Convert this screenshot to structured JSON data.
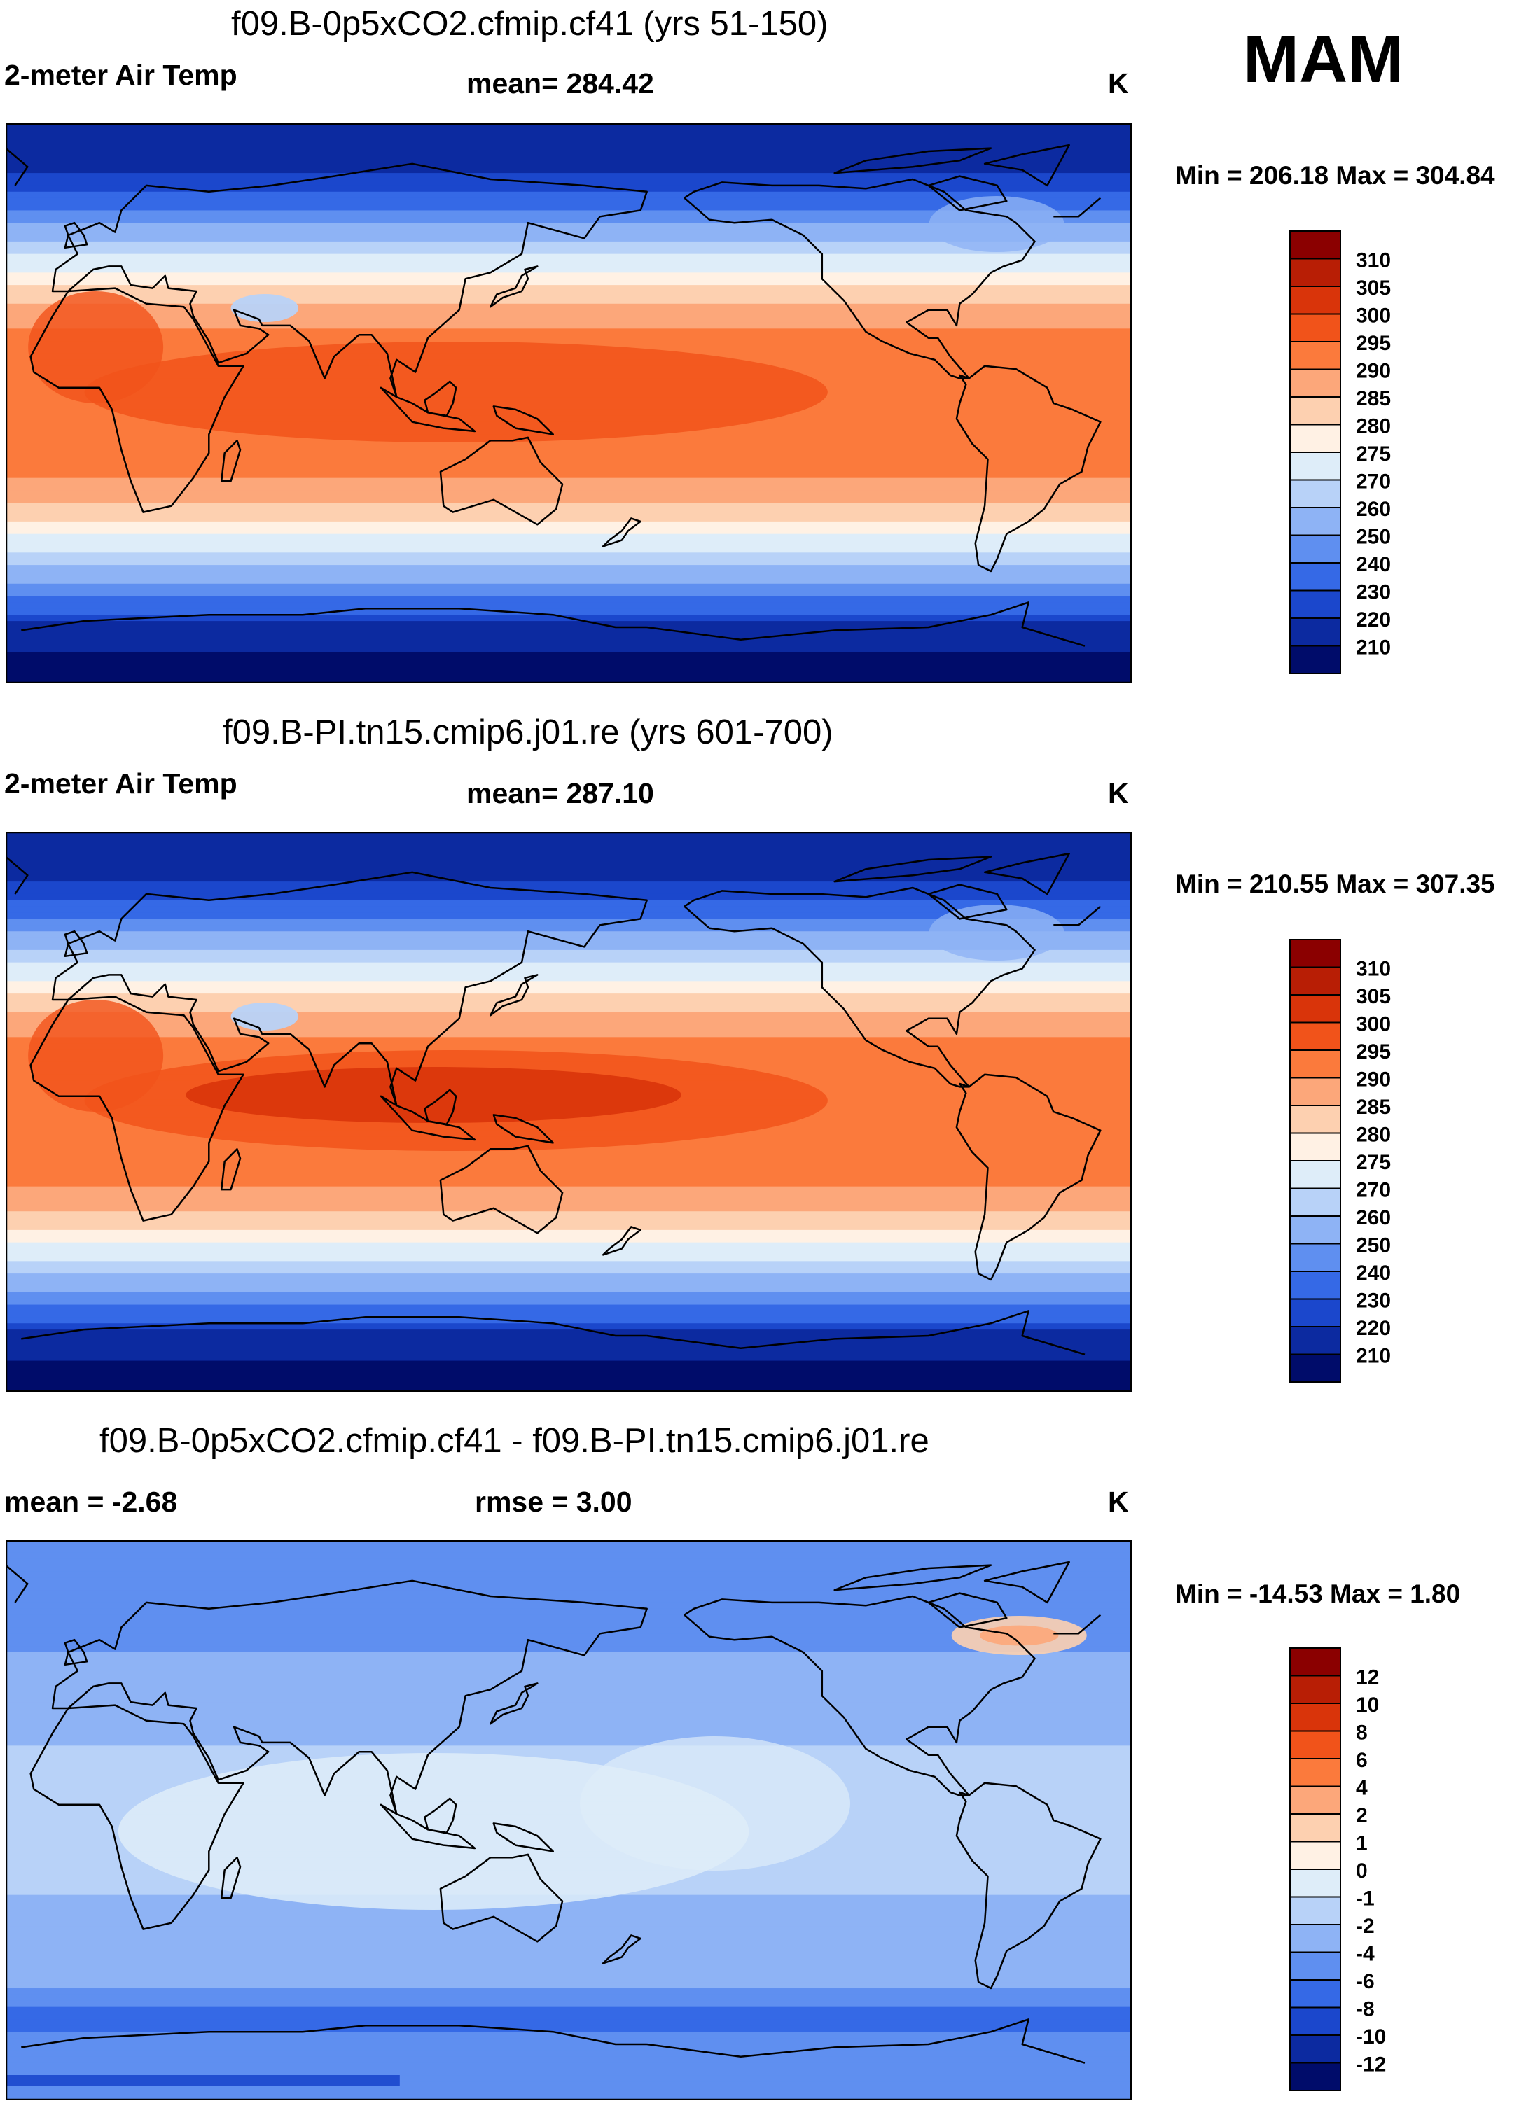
{
  "season": "MAM",
  "panels": [
    {
      "title": "f09.B-0p5xCO2.cfmip.cf41 (yrs 51-150)",
      "left_label": "2-meter Air Temp",
      "center_label": "mean= 284.42",
      "units": "K",
      "minmax": "Min = 206.18 Max = 304.84",
      "colorbar": {
        "labels": [
          "310",
          "305",
          "300",
          "295",
          "290",
          "285",
          "280",
          "275",
          "270",
          "260",
          "250",
          "240",
          "230",
          "220",
          "210"
        ],
        "colors": [
          "#8b0000",
          "#b81e05",
          "#d9340a",
          "#f1531a",
          "#fb7a3c",
          "#fca77a",
          "#fdd0b0",
          "#fff1e4",
          "#deedf9",
          "#b8d2f8",
          "#8eb3f5",
          "#5f8ff0",
          "#3569e6",
          "#1b47cc",
          "#0c2aa0",
          "#000c6a"
        ]
      },
      "map_style": "temp",
      "mean_value": 284.42
    },
    {
      "title": "f09.B-PI.tn15.cmip6.j01.re (yrs 601-700)",
      "left_label": "2-meter Air Temp",
      "center_label": "mean= 287.10",
      "units": "K",
      "minmax": "Min = 210.55 Max = 307.35",
      "colorbar": {
        "labels": [
          "310",
          "305",
          "300",
          "295",
          "290",
          "285",
          "280",
          "275",
          "270",
          "260",
          "250",
          "240",
          "230",
          "220",
          "210"
        ],
        "colors": [
          "#8b0000",
          "#b81e05",
          "#d9340a",
          "#f1531a",
          "#fb7a3c",
          "#fca77a",
          "#fdd0b0",
          "#fff1e4",
          "#deedf9",
          "#b8d2f8",
          "#8eb3f5",
          "#5f8ff0",
          "#3569e6",
          "#1b47cc",
          "#0c2aa0",
          "#000c6a"
        ]
      },
      "map_style": "temp",
      "mean_value": 287.1
    },
    {
      "title": "f09.B-0p5xCO2.cfmip.cf41 - f09.B-PI.tn15.cmip6.j01.re",
      "left_label": "mean =  -2.68",
      "center_label": "rmse =   3.00",
      "units": "K",
      "minmax": "Min = -14.53 Max =   1.80",
      "colorbar": {
        "labels": [
          "12",
          "10",
          "8",
          "6",
          "4",
          "2",
          "1",
          "0",
          "-1",
          "-2",
          "-4",
          "-6",
          "-8",
          "-10",
          "-12"
        ],
        "colors": [
          "#8b0000",
          "#b81e05",
          "#d9340a",
          "#f1531a",
          "#fb7a3c",
          "#fca77a",
          "#fdd0b0",
          "#fff1e4",
          "#deedf9",
          "#b8d2f8",
          "#8eb3f5",
          "#5f8ff0",
          "#3569e6",
          "#1b47cc",
          "#0c2aa0",
          "#000c6a"
        ]
      },
      "map_style": "diff",
      "mean_value": -2.68
    }
  ]
}
